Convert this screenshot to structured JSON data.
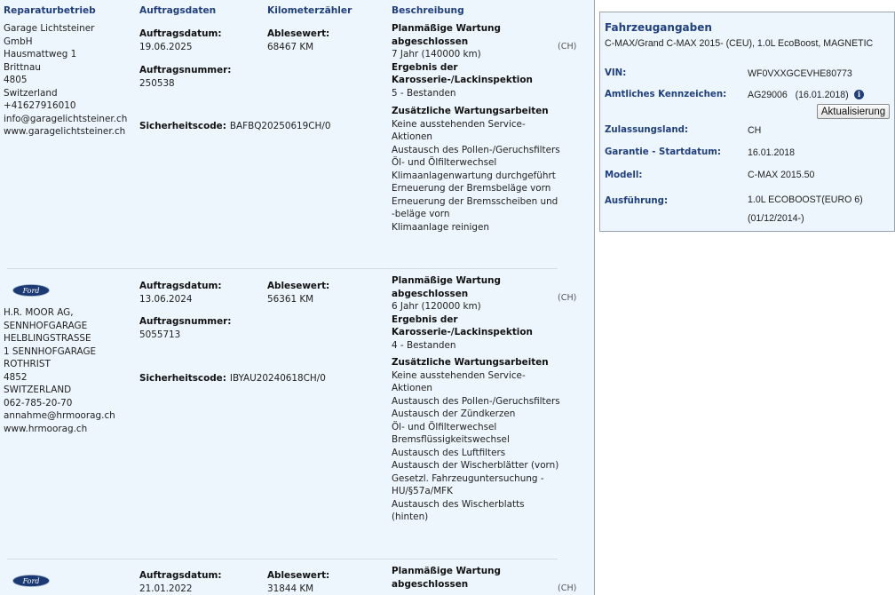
{
  "headers": {
    "repair_shop": "Reparaturbetrieb",
    "order_data": "Auftragsdaten",
    "odometer": "Kilometerzähler",
    "description": "Beschreibung"
  },
  "records": [
    {
      "logo": "",
      "address": [
        "Garage Lichtsteiner",
        "GmbH",
        "Hausmattweg 1",
        "Brittnau",
        "4805",
        "Switzerland",
        "+41627916010",
        "info@garagelichtsteiner.ch",
        "www.garagelichtsteiner.ch"
      ],
      "order_date_label": "Auftragsdatum:",
      "order_date": "19.06.2025",
      "order_number_label": "Auftragsnummer:",
      "order_number": "250538",
      "security_label": "Sicherheitscode:",
      "security_code": "BAFBQ20250619CH/0",
      "reading_label": "Ablesewert:",
      "reading": "68467 KM",
      "desc": [
        {
          "t": "Planmäßige Wartung",
          "b": true
        },
        {
          "t": "abgeschlossen",
          "b": true
        },
        {
          "t": "7 Jahr (140000 km)"
        },
        {
          "t": "Ergebnis der",
          "b": true
        },
        {
          "t": "Karosserie-/Lackinspektion",
          "b": true
        },
        {
          "t": "5 - Bestanden"
        }
      ],
      "extra_title": "Zusätzliche Wartungsarbeiten",
      "extra": [
        "Keine ausstehenden Service-",
        "Aktionen",
        "Austausch des Pollen-/Geruchsfilters",
        "Öl- und Ölfilterwechsel",
        "Klimaanlagenwartung durchgeführt",
        "Erneuerung der Bremsbeläge vorn",
        "Erneuerung der Bremsscheiben und",
        "-beläge vorn",
        "Klimaanlage reinigen"
      ],
      "country": "(CH)"
    },
    {
      "logo": "Ford",
      "address": [
        "H.R. MOOR AG,",
        "SENNHOFGARAGE",
        "HELBLINGSTRASSE",
        "1 SENNHOFGARAGE",
        "ROTHRIST",
        "4852",
        "SWITZERLAND",
        "062-785-20-70",
        "annahme@hrmoorag.ch",
        "www.hrmoorag.ch"
      ],
      "order_date_label": "Auftragsdatum:",
      "order_date": "13.06.2024",
      "order_number_label": "Auftragsnummer:",
      "order_number": "5055713",
      "security_label": "Sicherheitscode:",
      "security_code": "IBYAU20240618CH/0",
      "reading_label": "Ablesewert:",
      "reading": "56361 KM",
      "desc": [
        {
          "t": "Planmäßige Wartung",
          "b": true
        },
        {
          "t": "abgeschlossen",
          "b": true
        },
        {
          "t": "6 Jahr (120000 km)"
        },
        {
          "t": "Ergebnis der",
          "b": true
        },
        {
          "t": "Karosserie-/Lackinspektion",
          "b": true
        },
        {
          "t": "4 - Bestanden"
        }
      ],
      "extra_title": "Zusätzliche Wartungsarbeiten",
      "extra": [
        "Keine ausstehenden Service-",
        "Aktionen",
        "Austausch des Pollen-/Geruchsfilters",
        "Austausch der Zündkerzen",
        "Öl- und Ölfilterwechsel",
        "Bremsflüssigkeitswechsel",
        "Austausch des Luftfilters",
        "Austausch der Wischerblätter (vorn)",
        "Gesetzl. Fahrzeuguntersuchung -",
        "HU/§57a/MFK",
        "Austausch des Wischerblatts",
        "(hinten)"
      ],
      "country": "(CH)"
    },
    {
      "logo": "Ford",
      "address": [],
      "order_date_label": "Auftragsdatum:",
      "order_date": "21.01.2022",
      "reading_label": "Ablesewert:",
      "reading": "31844 KM",
      "desc": [
        {
          "t": "Planmäßige Wartung",
          "b": true
        },
        {
          "t": "abgeschlossen",
          "b": true
        }
      ],
      "country": "(CH)"
    }
  ],
  "vehicle": {
    "title": "Fahrzeugangaben",
    "subtitle": "C-MAX/Grand C-MAX 2015- (CEU), 1.0L EcoBoost, MAGNETIC",
    "vin_label": "VIN:",
    "vin": "WF0VXXGCEVHE80773",
    "plate_label": "Amtliches Kennzeichen:",
    "plate": "AG29006   (16.01.2018)",
    "info_icon": "info-circle-icon",
    "update_button": "Aktualisierung",
    "country_label": "Zulassungsland:",
    "country": "CH",
    "warranty_label": "Garantie - Startdatum:",
    "warranty": "16.01.2018",
    "model_label": "Modell:",
    "model": "C-MAX 2015.50",
    "version_label": "Ausführung:",
    "version_1": "1.0L ECOBOOST(EURO 6)",
    "version_2": "(01/12/2014-)"
  }
}
